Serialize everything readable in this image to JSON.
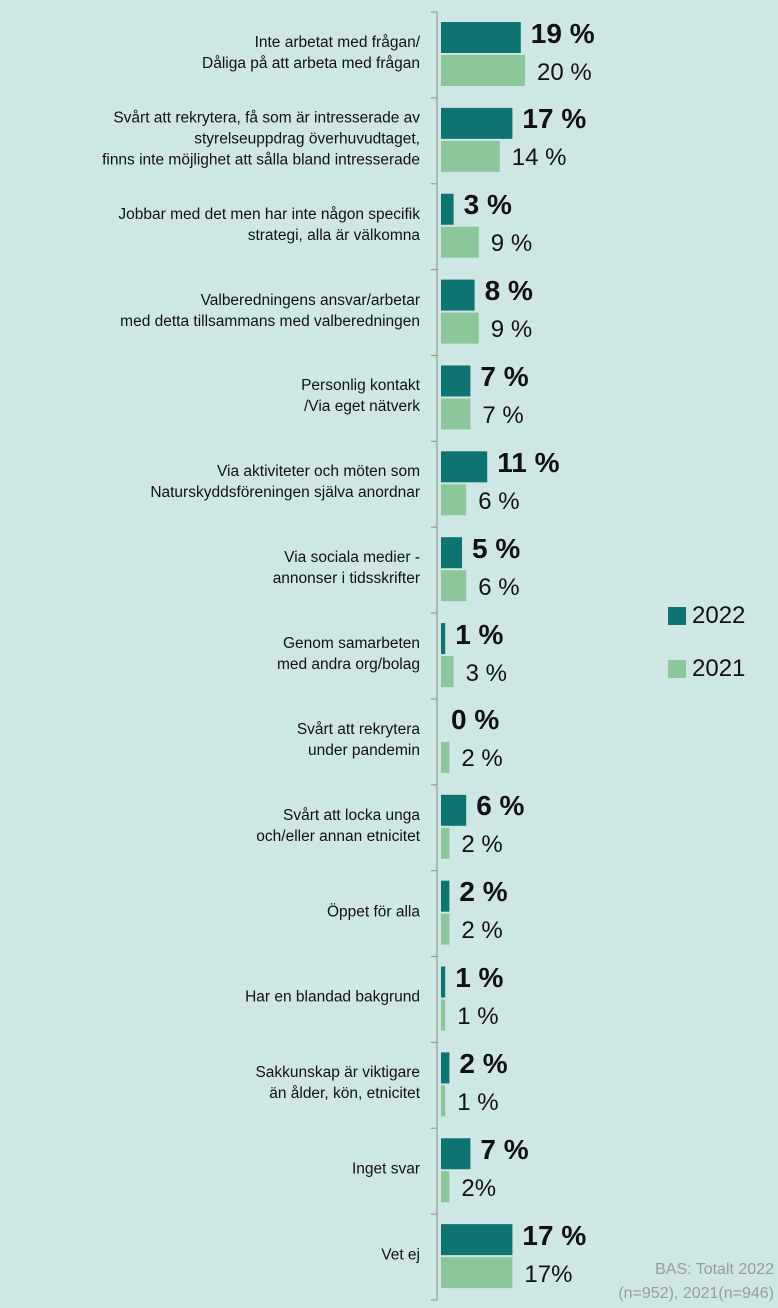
{
  "chart_data": {
    "type": "bar",
    "orientation": "horizontal",
    "categories": [
      "Inte arbetat med frågan/\nDåliga på att arbeta med frågan",
      "Svårt att rekrytera, få som är intresserade av\nstyrelseuppdrag överhuvudtaget,\nfinns inte möjlighet att sålla bland intresserade",
      "Jobbar med det men har inte någon specifik\nstrategi, alla är välkomna",
      "Valberedningens ansvar/arbetar\nmed detta tillsammans med valberedningen",
      "Personlig kontakt\n/Via eget nätverk",
      "Via aktiviteter och möten som\nNaturskyddsföreningen själva anordnar",
      "Via sociala medier -\nannonser i tidsskrifter",
      "Genom samarbeten\nmed andra org/bolag",
      "Svårt att rekrytera\nunder pandemin",
      "Svårt att locka unga\noch/eller annan etnicitet",
      "Öppet för alla",
      "Har en blandad bakgrund",
      "Sakkunskap är viktigare\nän ålder, kön, etnicitet",
      "Inget svar",
      "Vet ej"
    ],
    "series": [
      {
        "name": "2022",
        "color": "#0f7372",
        "values": [
          19,
          17,
          3,
          8,
          7,
          11,
          5,
          1,
          0,
          6,
          2,
          1,
          2,
          7,
          17
        ],
        "value_labels": [
          "19 %",
          "17 %",
          "3 %",
          "8 %",
          "7 %",
          "11 %",
          "5 %",
          "1 %",
          "0 %",
          "6 %",
          "2 %",
          "1 %",
          "2 %",
          "7 %",
          "17 %"
        ]
      },
      {
        "name": "2021",
        "color": "#8cc79b",
        "values": [
          20,
          14,
          9,
          9,
          7,
          6,
          6,
          3,
          2,
          2,
          2,
          1,
          1,
          2,
          17
        ],
        "value_labels": [
          "20 %",
          "14 %",
          "9 %",
          "9 %",
          "7 %",
          "6 %",
          "6 %",
          "3 %",
          "2 %",
          "2 %",
          "2 %",
          "1 %",
          "1 %",
          "2%",
          "17%"
        ]
      }
    ],
    "footnote": "BAS: Totalt 2022\n(n=952), 2021(n=946)"
  }
}
